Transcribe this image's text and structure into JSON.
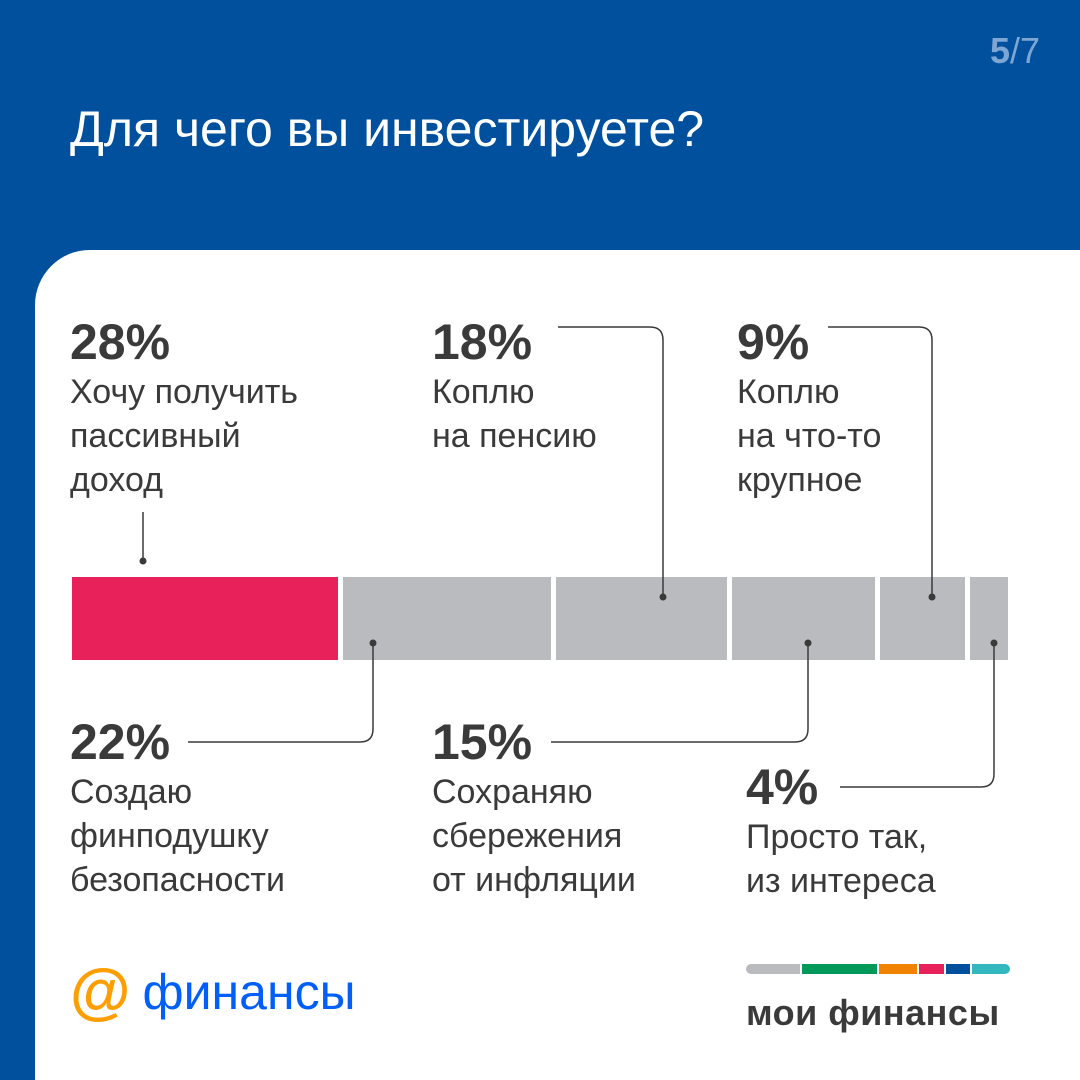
{
  "pager": {
    "current": "5",
    "total": "/7"
  },
  "title": "Для чего вы инвестируете?",
  "colors": {
    "background": "#00509e",
    "highlight": "#e8215a",
    "segment": "#b9bbbe"
  },
  "chart_data": {
    "type": "bar",
    "orientation": "stacked-horizontal",
    "title": "Для чего вы инвестируете?",
    "categories": [
      "Хочу получить пассивный доход",
      "Создаю финподушку безопасности",
      "Коплю на пенсию",
      "Сохраняю сбережения от инфляции",
      "Коплю на что-то крупное",
      "Просто так, из интереса"
    ],
    "values": [
      28,
      22,
      18,
      15,
      9,
      4
    ],
    "labels": [
      {
        "pct": "28%",
        "desc": "Хочу получить\nпассивный\nдоход"
      },
      {
        "pct": "22%",
        "desc": "Создаю\nфинподушку\nбезопасности"
      },
      {
        "pct": "18%",
        "desc": "Коплю\nна пенсию"
      },
      {
        "pct": "15%",
        "desc": "Сохраняю\nсбережения\nот инфляции"
      },
      {
        "pct": "9%",
        "desc": "Коплю\nна что-то\nкрупное"
      },
      {
        "pct": "4%",
        "desc": "Просто так,\nиз интереса"
      }
    ]
  },
  "footer": {
    "logo_at": "@",
    "logo_word": "финансы",
    "brand_name": "мои финансы",
    "brand_stripes": [
      "#b9bbbe",
      "#00995a",
      "#f08200",
      "#e8215a",
      "#00509e",
      "#34b8c0"
    ]
  }
}
